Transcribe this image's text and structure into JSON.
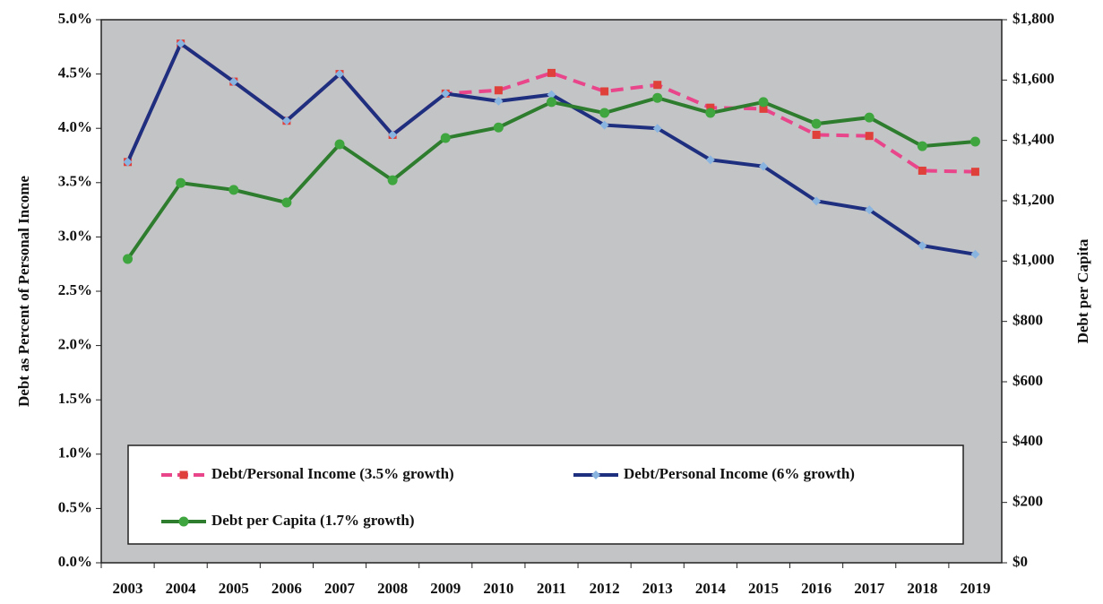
{
  "chart_data": {
    "type": "line",
    "categories": [
      "2003",
      "2004",
      "2005",
      "2006",
      "2007",
      "2008",
      "2009",
      "2010",
      "2011",
      "2012",
      "2013",
      "2014",
      "2015",
      "2016",
      "2017",
      "2018",
      "2019"
    ],
    "y_label": "Debt as Percent of Personal Income",
    "y2_label": "Debt per Capita",
    "ylim": [
      0,
      5
    ],
    "yticks": [
      {
        "value": 0,
        "label": "0.0%"
      },
      {
        "value": 0.5,
        "label": "0.5%"
      },
      {
        "value": 1,
        "label": "1.0%"
      },
      {
        "value": 1.5,
        "label": "1.5%"
      },
      {
        "value": 2,
        "label": "2.0%"
      },
      {
        "value": 2.5,
        "label": "2.5%"
      },
      {
        "value": 3,
        "label": "3.0%"
      },
      {
        "value": 3.5,
        "label": "3.5%"
      },
      {
        "value": 4,
        "label": "4.0%"
      },
      {
        "value": 4.5,
        "label": "4.5%"
      },
      {
        "value": 5,
        "label": "5.0%"
      }
    ],
    "y2lim": [
      0,
      1800
    ],
    "y2ticks": [
      {
        "value": 0,
        "label": "$0"
      },
      {
        "value": 200,
        "label": "$200"
      },
      {
        "value": 400,
        "label": "$400"
      },
      {
        "value": 600,
        "label": "$600"
      },
      {
        "value": 800,
        "label": "$800"
      },
      {
        "value": 1000,
        "label": "$1,000"
      },
      {
        "value": 1200,
        "label": "$1,200"
      },
      {
        "value": 1400,
        "label": "$1,400"
      },
      {
        "value": 1600,
        "label": "$1,600"
      },
      {
        "value": 1800,
        "label": "$1,800"
      }
    ],
    "series": [
      {
        "name": "Debt/Personal Income (3.5% growth)",
        "color": "#e8458b",
        "marker_color": "#e0403a",
        "marker": "square",
        "dashed": true,
        "values": [
          3.69,
          4.78,
          4.43,
          4.07,
          4.5,
          3.94,
          4.32,
          4.35,
          4.51,
          4.34,
          4.4,
          4.19,
          4.18,
          3.94,
          3.93,
          3.61,
          3.6
        ]
      },
      {
        "name": "Debt/Personal Income (6% growth)",
        "color": "#1f2f7f",
        "marker_color": "#8ab4e0",
        "marker": "diamond",
        "values": [
          3.69,
          4.78,
          4.43,
          4.07,
          4.5,
          3.94,
          4.32,
          4.25,
          4.31,
          4.03,
          4.0,
          3.71,
          3.65,
          3.33,
          3.25,
          2.92,
          2.84
        ]
      },
      {
        "name": "Debt per Capita (1.7% growth)",
        "color": "#2e7d2e",
        "marker_color": "#3fa63f",
        "marker": "circle",
        "axis": "y2",
        "values": [
          1007,
          1259,
          1236,
          1194,
          1387,
          1268,
          1408,
          1443,
          1527,
          1491,
          1541,
          1491,
          1527,
          1455,
          1476,
          1381,
          1396
        ]
      }
    ]
  }
}
